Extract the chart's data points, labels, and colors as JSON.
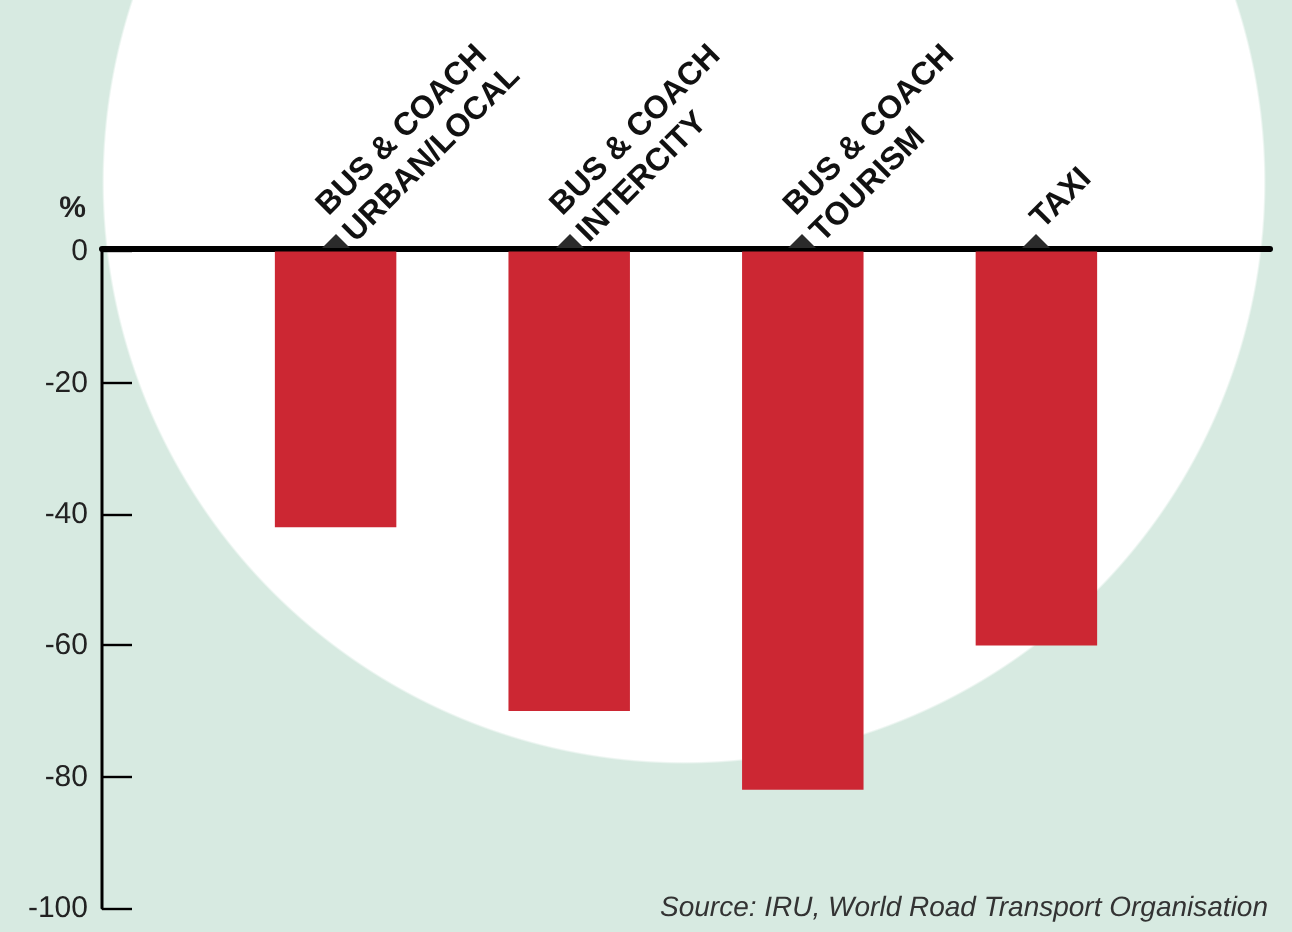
{
  "chart_data": {
    "type": "bar",
    "ylabel": "%",
    "categories": [
      "BUS & COACH URBAN/LOCAL",
      "BUS & COACH INTERCITY",
      "BUS & COACH TOURISM",
      "TAXI"
    ],
    "values": [
      -42,
      -70,
      -82,
      -60
    ],
    "color": "#cc2733",
    "ylim": [
      -100,
      0
    ],
    "yticks": [
      -100,
      -80,
      -60,
      -40,
      -20,
      0
    ],
    "annotations": [
      "Source: IRU, World Road Transport Organisation"
    ]
  }
}
